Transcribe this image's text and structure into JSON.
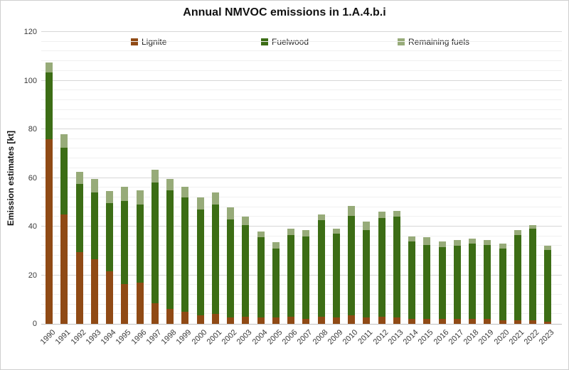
{
  "chart_data": {
    "type": "bar",
    "stacked": true,
    "title": "Annual NMVOC emissions in 1.A.4.b.i",
    "ylabel": "Emission estimates [kt]",
    "xlabel": "",
    "ylim": [
      0,
      120
    ],
    "yticks": [
      0,
      20,
      40,
      60,
      80,
      100,
      120
    ],
    "major_grid_interval": 20,
    "minor_grid_interval": 4,
    "grid": "on",
    "legend_position": "top-inside",
    "categories": [
      "1990",
      "1991",
      "1992",
      "1993",
      "1994",
      "1995",
      "1996",
      "1997",
      "1998",
      "1999",
      "2000",
      "2001",
      "2002",
      "2003",
      "2004",
      "2005",
      "2006",
      "2007",
      "2008",
      "2009",
      "2010",
      "2011",
      "2012",
      "2013",
      "2014",
      "2015",
      "2016",
      "2017",
      "2018",
      "2019",
      "2020",
      "2021",
      "2022",
      "2023"
    ],
    "series": [
      {
        "name": "Lignite",
        "color": "#904A15",
        "values": [
          76,
          45,
          29.5,
          26.5,
          21.5,
          16.5,
          17,
          8.5,
          6,
          5,
          3.5,
          4,
          2.5,
          3,
          2.5,
          2.5,
          3,
          2,
          3,
          2.5,
          3.5,
          2.5,
          3,
          2.5,
          2,
          2,
          2,
          2,
          2,
          2,
          1.5,
          1.5,
          1.5,
          1
        ]
      },
      {
        "name": "Fuelwood",
        "color": "#3C6D15",
        "values": [
          27.5,
          27.5,
          28,
          27.5,
          28,
          34,
          32,
          49.5,
          49,
          47,
          43.5,
          45,
          40.5,
          37.5,
          33,
          28.5,
          33.5,
          34,
          39.5,
          34.5,
          41,
          36,
          40.5,
          41.5,
          32,
          30.5,
          29.5,
          30,
          31,
          30.5,
          29.5,
          35,
          37.5,
          29.5
        ]
      },
      {
        "name": "Remaining fuels",
        "color": "#97AB79",
        "values": [
          4,
          5.5,
          5,
          5.5,
          5,
          6,
          6,
          5.5,
          4.5,
          4.5,
          5,
          5,
          5,
          3.5,
          2.5,
          2.5,
          2.5,
          2.5,
          2.5,
          2,
          4,
          3.5,
          2.5,
          2.5,
          2,
          3,
          2.5,
          2.5,
          2,
          2,
          2,
          2,
          1.5,
          1.5
        ]
      }
    ],
    "legend_x_positions": [
      183,
      366,
      558
    ]
  }
}
